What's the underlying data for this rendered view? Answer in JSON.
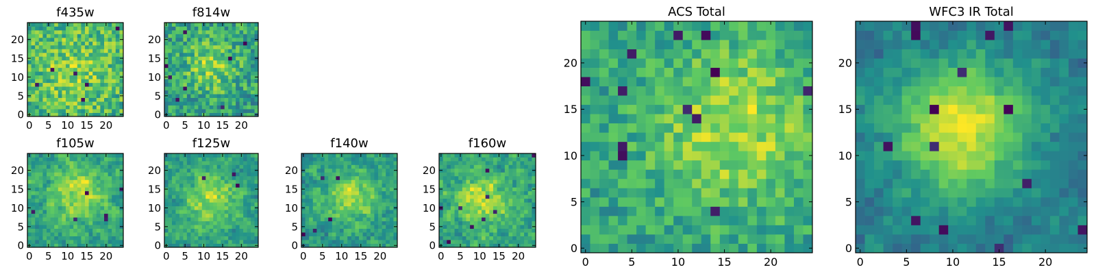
{
  "figure": {
    "colormap": "viridis",
    "colormap_stops": [
      "#440154",
      "#3b528b",
      "#21918c",
      "#5ec962",
      "#fde725"
    ]
  },
  "chart_data": [
    {
      "type": "heatmap",
      "title": "f435w",
      "grid_size": [
        25,
        25
      ],
      "origin": "lower",
      "xlim": [
        -0.5,
        24.5
      ],
      "ylim": [
        -0.5,
        24.5
      ],
      "xticks": [
        0,
        5,
        10,
        15,
        20
      ],
      "yticks": [
        0,
        5,
        10,
        15,
        20
      ],
      "xtick_labels": [
        "0",
        "5",
        "10",
        "15",
        "20"
      ],
      "ytick_labels": [
        "0",
        "5",
        "10",
        "15",
        "20"
      ],
      "style": {
        "noise": 0.34,
        "smooth": 0,
        "floor": 0.34,
        "peak": [
          12,
          12
        ],
        "peak_sigma": 8,
        "peak_amp": 0.12,
        "seed": 11,
        "dark_spots": 6
      }
    },
    {
      "type": "heatmap",
      "title": "f814w",
      "grid_size": [
        25,
        25
      ],
      "origin": "lower",
      "xlim": [
        -0.5,
        24.5
      ],
      "ylim": [
        -0.5,
        24.5
      ],
      "xticks": [
        0,
        5,
        10,
        15,
        20
      ],
      "yticks": [
        0,
        5,
        10,
        15,
        20
      ],
      "xtick_labels": [
        "0",
        "5",
        "10",
        "15",
        "20"
      ],
      "ytick_labels": [
        "0",
        "5",
        "10",
        "15",
        "20"
      ],
      "style": {
        "noise": 0.36,
        "smooth": 0,
        "floor": 0.32,
        "peak": [
          12,
          13
        ],
        "peak_sigma": 5,
        "peak_amp": 0.22,
        "seed": 23,
        "dark_spots": 8
      }
    },
    {
      "type": "heatmap",
      "title": "f105w",
      "grid_size": [
        25,
        25
      ],
      "origin": "lower",
      "xlim": [
        -0.5,
        24.5
      ],
      "ylim": [
        -0.5,
        24.5
      ],
      "xticks": [
        0,
        5,
        10,
        15,
        20
      ],
      "yticks": [
        0,
        5,
        10,
        15,
        20
      ],
      "xtick_labels": [
        "0",
        "5",
        "10",
        "15",
        "20"
      ],
      "ytick_labels": [
        "0",
        "5",
        "10",
        "15",
        "20"
      ],
      "style": {
        "noise": 0.42,
        "smooth": 1,
        "floor": 0.36,
        "peak": [
          13,
          14
        ],
        "peak_sigma": 5,
        "peak_amp": 0.3,
        "seed": 37,
        "dark_spots": 6
      }
    },
    {
      "type": "heatmap",
      "title": "f125w",
      "grid_size": [
        25,
        25
      ],
      "origin": "lower",
      "xlim": [
        -0.5,
        24.5
      ],
      "ylim": [
        -0.5,
        24.5
      ],
      "xticks": [
        0,
        5,
        10,
        15,
        20
      ],
      "yticks": [
        0,
        5,
        10,
        15,
        20
      ],
      "xtick_labels": [
        "0",
        "5",
        "10",
        "15",
        "20"
      ],
      "ytick_labels": [
        "0",
        "5",
        "10",
        "15",
        "20"
      ],
      "style": {
        "noise": 0.42,
        "smooth": 1,
        "floor": 0.36,
        "peak": [
          12,
          12
        ],
        "peak_sigma": 5,
        "peak_amp": 0.3,
        "seed": 41,
        "dark_spots": 3
      }
    },
    {
      "type": "heatmap",
      "title": "f140w",
      "grid_size": [
        25,
        25
      ],
      "origin": "lower",
      "xlim": [
        -0.5,
        24.5
      ],
      "ylim": [
        -0.5,
        24.5
      ],
      "xticks": [
        0,
        5,
        10,
        15,
        20
      ],
      "yticks": [
        0,
        5,
        10,
        15,
        20
      ],
      "xtick_labels": [
        "0",
        "5",
        "10",
        "15",
        "20"
      ],
      "ytick_labels": [
        "0",
        "5",
        "10",
        "15",
        "20"
      ],
      "style": {
        "noise": 0.42,
        "smooth": 1,
        "floor": 0.34,
        "peak": [
          12,
          13
        ],
        "peak_sigma": 5,
        "peak_amp": 0.3,
        "seed": 53,
        "dark_spots": 5
      }
    },
    {
      "type": "heatmap",
      "title": "f160w",
      "grid_size": [
        25,
        25
      ],
      "origin": "lower",
      "xlim": [
        -0.5,
        24.5
      ],
      "ylim": [
        -0.5,
        24.5
      ],
      "xticks": [
        0,
        5,
        10,
        15,
        20
      ],
      "yticks": [
        0,
        5,
        10,
        15,
        20
      ],
      "xtick_labels": [
        "0",
        "5",
        "10",
        "15",
        "20"
      ],
      "ytick_labels": [
        "0",
        "5",
        "10",
        "15",
        "20"
      ],
      "style": {
        "noise": 0.45,
        "smooth": 1,
        "floor": 0.28,
        "peak": [
          11,
          12
        ],
        "peak_sigma": 5,
        "peak_amp": 0.32,
        "seed": 67,
        "dark_spots": 9
      }
    },
    {
      "type": "heatmap",
      "title": "ACS Total",
      "grid_size": [
        25,
        25
      ],
      "origin": "lower",
      "xlim": [
        -0.5,
        24.5
      ],
      "ylim": [
        -0.5,
        24.5
      ],
      "xticks": [
        0,
        5,
        10,
        15,
        20
      ],
      "yticks": [
        0,
        5,
        10,
        15,
        20
      ],
      "xtick_labels": [
        "0",
        "5",
        "10",
        "15",
        "20"
      ],
      "ytick_labels": [
        "0",
        "5",
        "10",
        "15",
        "20"
      ],
      "style": {
        "noise": 0.3,
        "smooth": 0,
        "floor": 0.42,
        "peak": [
          16,
          13
        ],
        "peak_sigma": 6,
        "peak_amp": 0.3,
        "seed": 79,
        "dark_spots": 12
      }
    },
    {
      "type": "heatmap",
      "title": "WFC3 IR Total",
      "grid_size": [
        25,
        25
      ],
      "origin": "lower",
      "xlim": [
        -0.5,
        24.5
      ],
      "ylim": [
        -0.5,
        24.5
      ],
      "xticks": [
        0,
        5,
        10,
        15,
        20
      ],
      "yticks": [
        0,
        5,
        10,
        15,
        20
      ],
      "xtick_labels": [
        "0",
        "5",
        "10",
        "15",
        "20"
      ],
      "ytick_labels": [
        "0",
        "5",
        "10",
        "15",
        "20"
      ],
      "style": {
        "noise": 0.22,
        "smooth": 1,
        "floor": 0.3,
        "peak": [
          11,
          13
        ],
        "peak_sigma": 5,
        "peak_amp": 0.55,
        "seed": 97,
        "dark_spots": 14
      }
    }
  ]
}
